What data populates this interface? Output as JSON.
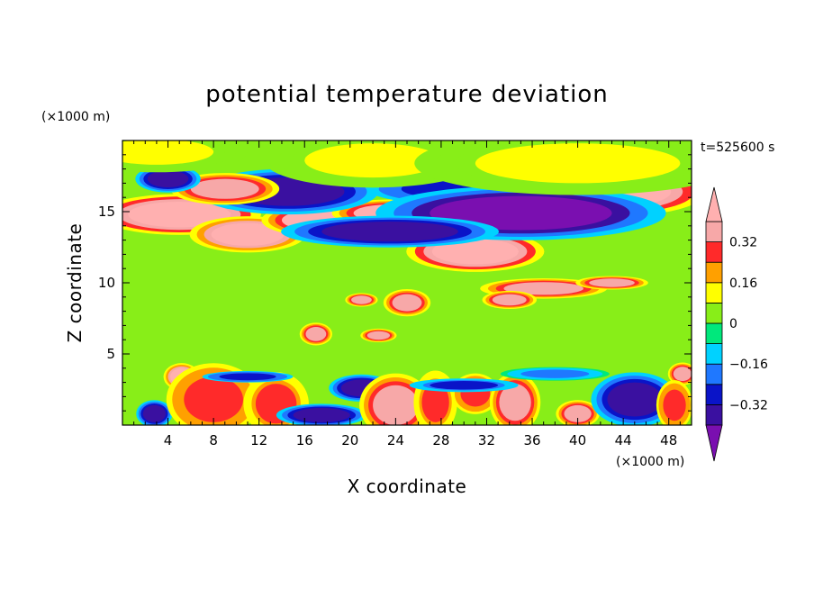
{
  "chart_data": {
    "type": "heatmap",
    "title": "potential temperature deviation",
    "xlabel": "X coordinate",
    "ylabel": "Z coordinate",
    "x_unit": "(×1000 m)",
    "y_unit": "(×1000 m)",
    "time_label": "t=525600 s",
    "xlim": [
      0,
      50
    ],
    "ylim": [
      0,
      20
    ],
    "x_ticks": [
      4,
      8,
      12,
      16,
      20,
      24,
      28,
      32,
      36,
      40,
      44,
      48
    ],
    "y_ticks": [
      5,
      10,
      15
    ],
    "colorbar": {
      "levels": [
        -0.4,
        -0.32,
        -0.24,
        -0.16,
        -0.08,
        0,
        0.08,
        0.16,
        0.24,
        0.32,
        0.4
      ],
      "labels": [
        {
          "text": "0.32",
          "value": 0.32
        },
        {
          "text": "0.16",
          "value": 0.16
        },
        {
          "text": "0",
          "value": 0
        },
        {
          "text": "−0.16",
          "value": -0.16
        },
        {
          "text": "−0.32",
          "value": -0.32
        }
      ],
      "colors": [
        "#7a0fb0",
        "#3a10a0",
        "#0a14c8",
        "#1f78ff",
        "#00d2ff",
        "#00e87c",
        "#88ee18",
        "#ffff00",
        "#ffa000",
        "#ff2a2a",
        "#f7a8a8",
        "#ffb0b0"
      ],
      "extend": "both"
    },
    "features": [
      {
        "x": 5,
        "z": 14.8,
        "rx": 4.5,
        "rz": 0.9,
        "value": 0.45
      },
      {
        "x": 11,
        "z": 13.4,
        "rx": 3.2,
        "rz": 0.8,
        "value": 0.42
      },
      {
        "x": 17,
        "z": 14.4,
        "rx": 3,
        "rz": 0.7,
        "value": 0.4
      },
      {
        "x": 23.5,
        "z": 14.9,
        "rx": 3.2,
        "rz": 0.6,
        "value": 0.4
      },
      {
        "x": 31,
        "z": 12.2,
        "rx": 3.8,
        "rz": 0.9,
        "value": 0.45
      },
      {
        "x": 43,
        "z": 16.4,
        "rx": 5.2,
        "rz": 1.1,
        "value": 0.45
      },
      {
        "x": 14.5,
        "z": 16.4,
        "rx": 5,
        "rz": 1,
        "value": -0.4
      },
      {
        "x": 9,
        "z": 16.6,
        "rx": 3,
        "rz": 0.7,
        "value": 0.32
      },
      {
        "x": 4,
        "z": 17.3,
        "rx": 1.8,
        "rz": 0.6,
        "value": -0.4
      },
      {
        "x": 29.5,
        "z": 16.6,
        "rx": 5,
        "rz": 0.7,
        "value": -0.3
      },
      {
        "x": 35,
        "z": 14.9,
        "rx": 8,
        "rz": 1.2,
        "value": -0.42
      },
      {
        "x": 23.5,
        "z": 13.6,
        "rx": 6,
        "rz": 0.7,
        "value": -0.34
      },
      {
        "x": 22,
        "z": 18.6,
        "rx": 6,
        "rz": 1.2,
        "value": 0.08
      },
      {
        "x": 40,
        "z": 18.4,
        "rx": 9,
        "rz": 1.4,
        "value": 0.1
      },
      {
        "x": 3,
        "z": 19.2,
        "rx": 5,
        "rz": 0.9,
        "value": 0.1
      },
      {
        "x": 37,
        "z": 9.6,
        "rx": 3.5,
        "rz": 0.45,
        "value": 0.36
      },
      {
        "x": 43,
        "z": 10,
        "rx": 2,
        "rz": 0.3,
        "value": 0.34
      },
      {
        "x": 34,
        "z": 8.8,
        "rx": 1.5,
        "rz": 0.4,
        "value": 0.34
      },
      {
        "x": 25,
        "z": 8.6,
        "rx": 1.3,
        "rz": 0.6,
        "value": 0.36
      },
      {
        "x": 21,
        "z": 8.8,
        "rx": 0.9,
        "rz": 0.3,
        "value": 0.34
      },
      {
        "x": 17,
        "z": 6.4,
        "rx": 0.9,
        "rz": 0.5,
        "value": 0.34
      },
      {
        "x": 22.5,
        "z": 6.3,
        "rx": 1,
        "rz": 0.3,
        "value": 0.34
      },
      {
        "x": 5.2,
        "z": 3.4,
        "rx": 1,
        "rz": 0.6,
        "value": 0.42
      },
      {
        "x": 49.2,
        "z": 3.6,
        "rx": 0.8,
        "rz": 0.5,
        "value": 0.36
      },
      {
        "x": 2.8,
        "z": 0.8,
        "rx": 1,
        "rz": 0.6,
        "value": -0.36
      },
      {
        "x": 8,
        "z": 1.8,
        "rx": 2.6,
        "rz": 1.6,
        "value": 0.3
      },
      {
        "x": 13.5,
        "z": 1.5,
        "rx": 1.8,
        "rz": 1.4,
        "value": 0.28
      },
      {
        "x": 17.5,
        "z": 0.7,
        "rx": 2.5,
        "rz": 0.5,
        "value": -0.36
      },
      {
        "x": 21,
        "z": 2.6,
        "rx": 1.8,
        "rz": 0.6,
        "value": -0.36
      },
      {
        "x": 24,
        "z": 1.4,
        "rx": 2,
        "rz": 1.4,
        "value": 0.34
      },
      {
        "x": 27.5,
        "z": 1.6,
        "rx": 1.2,
        "rz": 1.4,
        "value": 0.28
      },
      {
        "x": 31,
        "z": 2.2,
        "rx": 1.3,
        "rz": 0.9,
        "value": 0.3
      },
      {
        "x": 34.5,
        "z": 1.6,
        "rx": 1.4,
        "rz": 1.3,
        "value": 0.32
      },
      {
        "x": 40,
        "z": 0.8,
        "rx": 1.2,
        "rz": 0.6,
        "value": 0.36
      },
      {
        "x": 45,
        "z": 1.8,
        "rx": 2.4,
        "rz": 1.2,
        "value": -0.4
      },
      {
        "x": 48.5,
        "z": 1.4,
        "rx": 1,
        "rz": 1.1,
        "value": 0.3
      },
      {
        "x": 30,
        "z": 2.8,
        "rx": 3,
        "rz": 0.3,
        "value": -0.28
      },
      {
        "x": 11,
        "z": 3.4,
        "rx": 2.5,
        "rz": 0.25,
        "value": -0.3
      },
      {
        "x": 38,
        "z": 3.6,
        "rx": 3,
        "rz": 0.3,
        "value": -0.2
      }
    ]
  }
}
